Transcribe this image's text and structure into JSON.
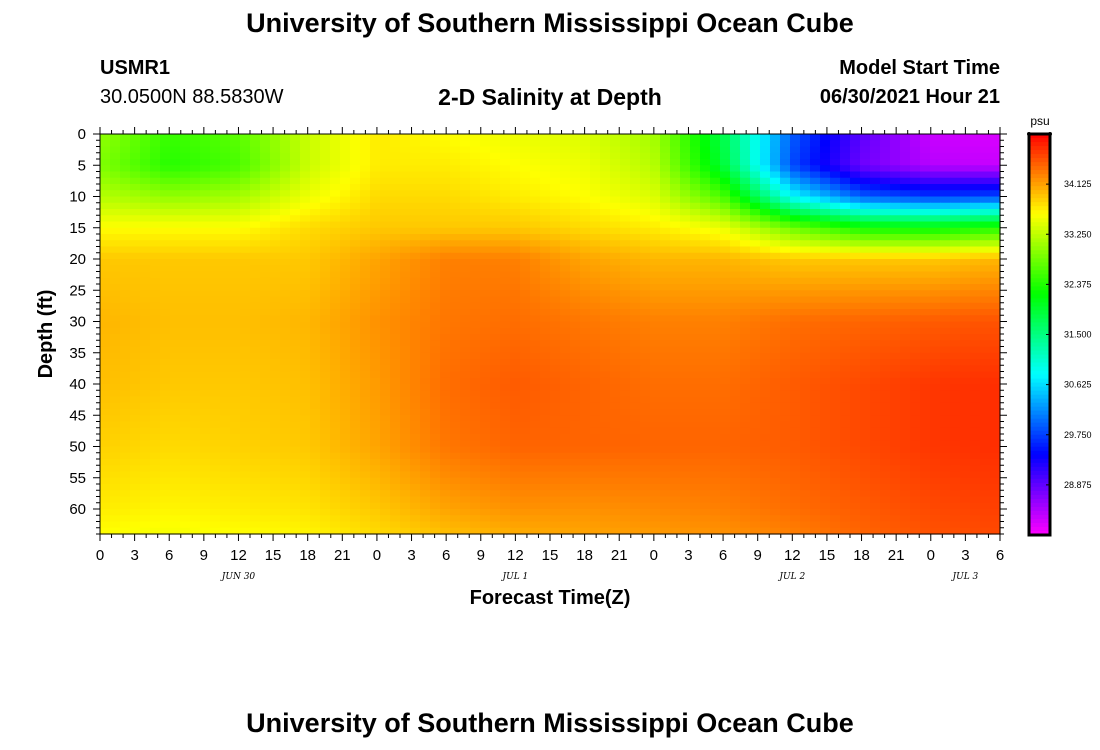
{
  "header": {
    "title": "University of Southern Mississippi Ocean Cube",
    "station_id": "USMR1",
    "coordinates": "30.0500N  88.5830W",
    "plot_title": "2-D Salinity at Depth",
    "model_start_label": "Model Start Time",
    "model_start_value": "06/30/2021 Hour 21"
  },
  "footer": {
    "title": "University of Southern Mississippi Ocean Cube"
  },
  "chart_data": {
    "type": "heatmap",
    "title": "2-D Salinity at Depth",
    "xlabel": "Forecast Time(Z)",
    "ylabel": "Depth (ft)",
    "x_ticks": [
      "0",
      "3",
      "6",
      "9",
      "12",
      "15",
      "18",
      "21",
      "0",
      "3",
      "6",
      "9",
      "12",
      "15",
      "18",
      "21",
      "0",
      "3",
      "6",
      "9",
      "12",
      "15",
      "18",
      "21",
      "0",
      "3",
      "6"
    ],
    "x_range_hours": [
      0,
      78
    ],
    "date_labels": [
      {
        "label": "JUN 30",
        "hour": 12
      },
      {
        "label": "JUL 1",
        "hour": 36
      },
      {
        "label": "JUL 2",
        "hour": 60
      },
      {
        "label": "JUL 3",
        "hour": 75
      }
    ],
    "y_ticks": [
      "0",
      "5",
      "10",
      "15",
      "20",
      "25",
      "30",
      "35",
      "40",
      "45",
      "50",
      "55",
      "60"
    ],
    "y_range_ft": [
      0,
      64
    ],
    "colorbar": {
      "unit": "psu",
      "ticks": [
        "34.125",
        "33.250",
        "32.375",
        "31.500",
        "30.625",
        "29.750",
        "28.875"
      ],
      "tick_values": [
        34.125,
        33.25,
        32.375,
        31.5,
        30.625,
        29.75,
        28.875
      ],
      "range": [
        28.0,
        35.0
      ]
    },
    "time_hours": [
      0,
      6,
      12,
      18,
      24,
      30,
      36,
      42,
      48,
      54,
      60,
      66,
      72,
      78
    ],
    "depths_ft": [
      0,
      5,
      10,
      15,
      20,
      30,
      40,
      50,
      60,
      64
    ],
    "salinity_psu": [
      [
        33.0,
        32.5,
        32.7,
        33.3,
        33.7,
        33.6,
        33.5,
        33.4,
        33.1,
        31.8,
        29.9,
        28.9,
        28.3,
        28.2
      ],
      [
        32.9,
        32.4,
        32.6,
        33.3,
        33.7,
        33.7,
        33.6,
        33.5,
        33.2,
        31.9,
        29.8,
        28.8,
        28.4,
        28.3
      ],
      [
        33.2,
        33.0,
        33.1,
        33.5,
        33.8,
        33.8,
        33.7,
        33.6,
        33.4,
        32.6,
        30.8,
        29.9,
        29.7,
        29.8
      ],
      [
        33.6,
        33.6,
        33.6,
        33.8,
        33.9,
        33.9,
        33.9,
        33.8,
        33.7,
        33.5,
        32.8,
        32.3,
        32.2,
        32.4
      ],
      [
        33.9,
        33.9,
        33.9,
        33.9,
        34.1,
        34.3,
        34.3,
        34.1,
        34.0,
        34.0,
        33.9,
        33.9,
        33.9,
        34.0
      ],
      [
        34.0,
        33.95,
        33.95,
        34.0,
        34.2,
        34.35,
        34.4,
        34.35,
        34.3,
        34.3,
        34.4,
        34.45,
        34.5,
        34.55
      ],
      [
        33.95,
        33.9,
        33.9,
        33.95,
        34.15,
        34.4,
        34.5,
        34.45,
        34.4,
        34.4,
        34.5,
        34.6,
        34.7,
        34.75
      ],
      [
        33.85,
        33.8,
        33.85,
        33.9,
        34.1,
        34.35,
        34.45,
        34.45,
        34.45,
        34.45,
        34.5,
        34.6,
        34.7,
        34.75
      ],
      [
        33.7,
        33.65,
        33.7,
        33.75,
        33.9,
        34.1,
        34.2,
        34.2,
        34.25,
        34.3,
        34.4,
        34.5,
        34.6,
        34.65
      ],
      [
        33.6,
        33.55,
        33.6,
        33.65,
        33.8,
        33.95,
        34.05,
        34.1,
        34.15,
        34.2,
        34.3,
        34.45,
        34.55,
        34.6
      ]
    ]
  }
}
